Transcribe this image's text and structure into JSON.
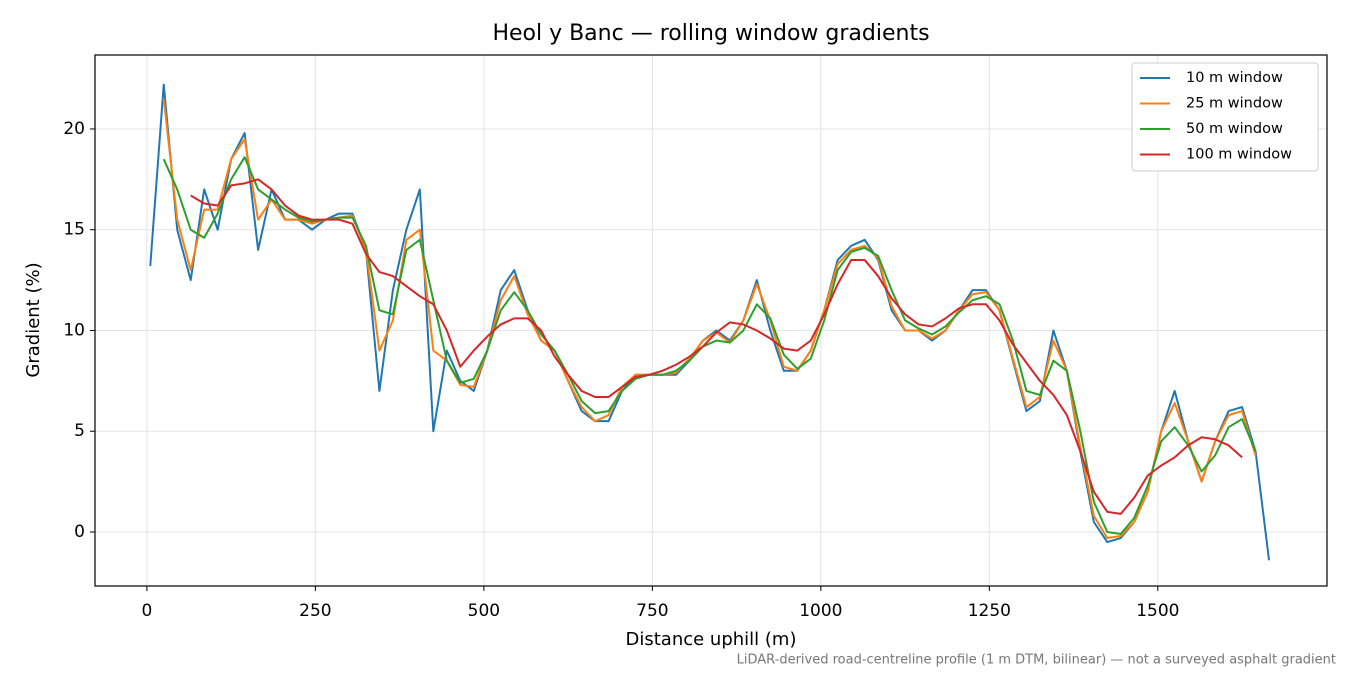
{
  "chart_data": {
    "type": "line",
    "title": "Heol y Banc — rolling window gradients",
    "xlabel": "Distance uphill (m)",
    "ylabel": "Gradient (%)",
    "footnote": "LiDAR-derived road-centreline profile (1 m DTM, bilinear) — not a surveyed asphalt gradient",
    "xlim": [
      -77,
      1751
    ],
    "ylim": [
      -2.68,
      23.67
    ],
    "xticks": [
      0,
      250,
      500,
      750,
      1000,
      1250,
      1500
    ],
    "yticks": [
      0,
      5,
      10,
      15,
      20
    ],
    "grid": true,
    "legend": "upper right",
    "x": [
      5,
      25,
      45,
      65,
      85,
      105,
      125,
      145,
      165,
      185,
      205,
      225,
      245,
      265,
      285,
      305,
      325,
      345,
      365,
      385,
      405,
      425,
      445,
      465,
      485,
      505,
      525,
      545,
      565,
      585,
      605,
      625,
      645,
      665,
      685,
      705,
      725,
      745,
      765,
      785,
      805,
      825,
      845,
      865,
      885,
      905,
      925,
      945,
      965,
      985,
      1005,
      1025,
      1045,
      1065,
      1085,
      1105,
      1125,
      1145,
      1165,
      1185,
      1205,
      1225,
      1245,
      1265,
      1285,
      1305,
      1325,
      1345,
      1365,
      1385,
      1405,
      1425,
      1445,
      1465,
      1485,
      1505,
      1525,
      1545,
      1565,
      1585,
      1605,
      1625,
      1645,
      1665
    ],
    "series": [
      {
        "name": "10 m window",
        "color": "#1f77b4",
        "values": [
          13.2,
          22.2,
          15,
          12.5,
          17,
          15,
          18.5,
          19.8,
          14,
          17,
          15.5,
          15.5,
          15,
          15.5,
          15.8,
          15.8,
          14,
          7,
          12,
          15,
          17,
          5,
          9,
          7.5,
          7,
          9,
          12,
          13,
          11,
          9.5,
          9,
          7.5,
          6,
          5.5,
          5.5,
          7,
          7.8,
          7.8,
          7.8,
          7.8,
          8.5,
          9.5,
          10,
          9.5,
          10.5,
          12.5,
          10,
          8,
          8,
          9,
          11,
          13.5,
          14.2,
          14.5,
          13.5,
          11,
          10,
          10,
          9.5,
          10,
          11,
          12,
          12,
          11,
          8.5,
          6,
          6.5,
          10,
          8,
          4,
          0.5,
          -0.5,
          -0.3,
          0.5,
          2,
          5,
          7,
          4.5,
          2.5,
          4.5,
          6,
          6.2,
          4,
          -1.4
        ]
      },
      {
        "name": "25 m window",
        "color": "#ff7f0e",
        "values": [
          null,
          21.5,
          15.5,
          13,
          16,
          16,
          18.5,
          19.5,
          15.5,
          16.5,
          15.5,
          15.5,
          15.3,
          15.5,
          15.6,
          15.7,
          14,
          9,
          10.5,
          14.5,
          15,
          9,
          8.5,
          7.3,
          7.2,
          9,
          11.5,
          12.7,
          10.8,
          9.5,
          9,
          7.5,
          6.2,
          5.5,
          5.8,
          7.2,
          7.8,
          7.8,
          7.8,
          7.9,
          8.6,
          9.5,
          9.9,
          9.4,
          10.5,
          12.3,
          10.5,
          8.2,
          8,
          9,
          11,
          13.3,
          14,
          14.2,
          13.6,
          11.2,
          10,
          10,
          9.6,
          10,
          11,
          11.8,
          11.9,
          11,
          8.6,
          6.2,
          6.7,
          9.5,
          8,
          4.2,
          0.8,
          -0.3,
          -0.2,
          0.5,
          2,
          5,
          6.4,
          4.5,
          2.5,
          4.5,
          5.8,
          6,
          3.8,
          null
        ]
      },
      {
        "name": "50 m window",
        "color": "#2ca02c",
        "values": [
          null,
          18.5,
          17,
          15,
          14.6,
          15.8,
          17.5,
          18.6,
          17,
          16.5,
          16,
          15.6,
          15.4,
          15.5,
          15.6,
          15.6,
          14.2,
          11,
          10.8,
          14,
          14.5,
          11.5,
          8.5,
          7.4,
          7.6,
          9,
          11,
          11.9,
          11,
          9.8,
          9,
          7.8,
          6.5,
          5.9,
          6,
          7,
          7.6,
          7.8,
          7.8,
          8,
          8.5,
          9.2,
          9.5,
          9.4,
          10,
          11.3,
          10.6,
          8.8,
          8.1,
          8.6,
          10.5,
          13,
          13.9,
          14.1,
          13.7,
          12,
          10.5,
          10.1,
          9.8,
          10.2,
          10.9,
          11.5,
          11.7,
          11.3,
          9.5,
          7,
          6.8,
          8.5,
          8,
          5,
          1.5,
          0,
          -0.1,
          0.7,
          2.3,
          4.5,
          5.2,
          4.3,
          3,
          3.8,
          5.2,
          5.6,
          4,
          null
        ]
      },
      {
        "name": "100 m window",
        "color": "#d62728",
        "values": [
          null,
          null,
          null,
          16.7,
          16.3,
          16.2,
          17.2,
          17.3,
          17.5,
          17,
          16.2,
          15.7,
          15.5,
          15.5,
          15.5,
          15.3,
          13.8,
          12.9,
          12.7,
          12.2,
          11.7,
          11.3,
          10,
          8.2,
          9,
          9.7,
          10.3,
          10.6,
          10.6,
          10,
          8.7,
          7.8,
          7,
          6.7,
          6.7,
          7.2,
          7.7,
          7.8,
          8,
          8.3,
          8.7,
          9.2,
          9.9,
          10.4,
          10.3,
          10,
          9.6,
          9.1,
          9,
          9.5,
          10.8,
          12.3,
          13.5,
          13.5,
          12.7,
          11.6,
          10.8,
          10.3,
          10.2,
          10.6,
          11.1,
          11.3,
          11.3,
          10.5,
          9.3,
          8.4,
          7.5,
          6.8,
          5.8,
          4,
          2,
          1,
          0.9,
          1.7,
          2.8,
          3.3,
          3.7,
          4.3,
          4.7,
          4.6,
          4.3,
          3.7,
          null,
          null
        ]
      }
    ]
  }
}
